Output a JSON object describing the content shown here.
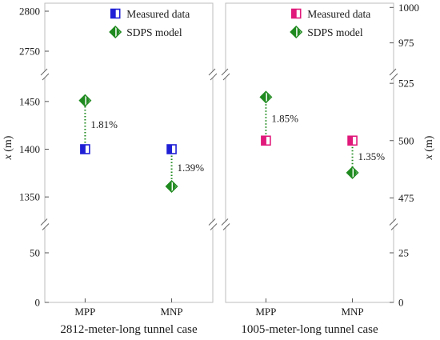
{
  "chart_data": [
    {
      "type": "scatter",
      "case_label": "2812-meter-long tunnel case",
      "ylabel": "x (m)",
      "ylabel_var": "x",
      "ylabel_unit": "(m)",
      "categories": [
        "MPP",
        "MNP"
      ],
      "y_segments": [
        {
          "range": [
            0,
            75
          ],
          "ticks": [
            0,
            50
          ]
        },
        {
          "range": [
            1325,
            1475
          ],
          "ticks": [
            1350,
            1400,
            1450
          ]
        },
        {
          "range": [
            2725,
            2810
          ],
          "ticks": [
            2750,
            2800
          ]
        }
      ],
      "series": [
        {
          "name": "Measured data",
          "marker": "square",
          "color": "#1f1fd6",
          "values": [
            1400,
            1400
          ]
        },
        {
          "name": "SDPS model",
          "marker": "diamond",
          "color": "#1f8a1f",
          "values": [
            1451,
            1361
          ]
        }
      ],
      "errors": [
        "1.81%",
        "1.39%"
      ],
      "legend": "top-right",
      "y_axis_side": "left"
    },
    {
      "type": "scatter",
      "case_label": "1005-meter-long tunnel case",
      "ylabel": "x (m)",
      "ylabel_var": "x",
      "ylabel_unit": "(m)",
      "categories": [
        "MPP",
        "MNP"
      ],
      "y_segments": [
        {
          "range": [
            0,
            37.5
          ],
          "ticks": [
            0,
            25
          ]
        },
        {
          "range": [
            465,
            527.5
          ],
          "ticks": [
            475,
            500,
            525
          ]
        },
        {
          "range": [
            955,
            1003
          ],
          "ticks": [
            975,
            1000
          ]
        }
      ],
      "series": [
        {
          "name": "Measured data",
          "marker": "square",
          "color": "#e0197a",
          "values": [
            500,
            500
          ]
        },
        {
          "name": "SDPS model",
          "marker": "diamond",
          "color": "#1f8a1f",
          "values": [
            519,
            486
          ]
        }
      ],
      "errors": [
        "1.85%",
        "1.35%"
      ],
      "legend": "top-right",
      "y_axis_side": "right"
    }
  ]
}
